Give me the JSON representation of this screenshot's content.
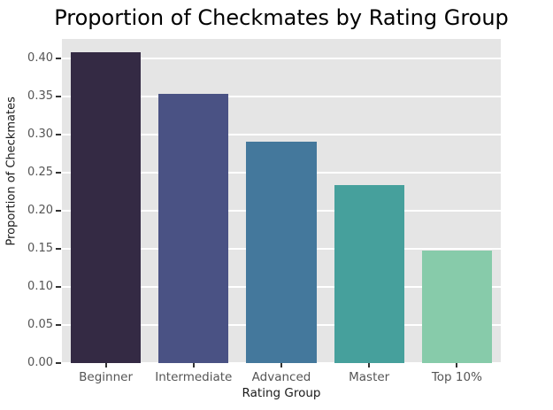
{
  "figure": {
    "title": "Proportion of Checkmates by Rating Group",
    "xlabel": "Rating Group",
    "ylabel": "Proportion of Checkmates"
  },
  "chart_data": {
    "type": "bar",
    "title": "Proportion of Checkmates by Rating Group",
    "xlabel": "Rating Group",
    "ylabel": "Proportion of Checkmates",
    "categories": [
      "Beginner",
      "Intermediate",
      "Advanced",
      "Master",
      "Top 10%"
    ],
    "values": [
      0.408,
      0.353,
      0.29,
      0.234,
      0.147
    ],
    "bar_colors": [
      "#342A44",
      "#4A5284",
      "#44789C",
      "#46A09C",
      "#87CBAA"
    ],
    "ylim": [
      0,
      0.425
    ],
    "yticks": [
      0.0,
      0.05,
      0.1,
      0.15,
      0.2,
      0.25,
      0.3,
      0.35,
      0.4
    ],
    "ytick_labels": [
      "0.00",
      "0.05",
      "0.10",
      "0.15",
      "0.20",
      "0.25",
      "0.30",
      "0.35",
      "0.40"
    ],
    "grid": true,
    "legend_position": "none",
    "plot_background": "#E5E5E5",
    "grid_color": "#FFFFFF",
    "tick_label_color": "#555555",
    "bar_width_fraction": 0.8
  }
}
